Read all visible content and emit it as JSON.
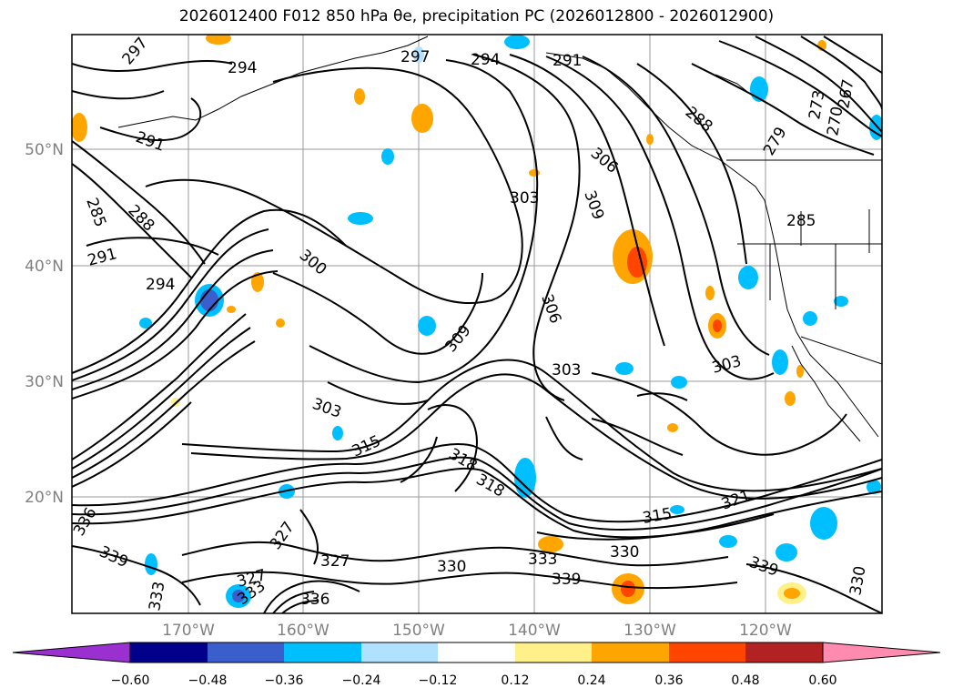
{
  "title": "2026012400 F012 850 hPa θe, precipitation PC (2026012800 - 2026012900)",
  "map": {
    "lat_labels": [
      "50°N",
      "40°N",
      "30°N",
      "20°N"
    ],
    "lon_labels": [
      "170°W",
      "160°W",
      "150°W",
      "140°W",
      "130°W",
      "120°W"
    ],
    "contour_labels": [
      "297",
      "294",
      "297",
      "294",
      "291",
      "291",
      "285",
      "288",
      "291",
      "294",
      "300",
      "303",
      "306",
      "309",
      "306",
      "309",
      "303",
      "303",
      "303",
      "318",
      "315",
      "318",
      "330",
      "327",
      "327",
      "330",
      "333",
      "339",
      "339",
      "336",
      "333",
      "336",
      "339",
      "327",
      "333",
      "315",
      "285",
      "279",
      "273",
      "270",
      "267",
      "288",
      "321",
      "330"
    ]
  },
  "colorbar": {
    "ticks": [
      "−0.60",
      "−0.48",
      "−0.36",
      "−0.24",
      "−0.12",
      "0.12",
      "0.24",
      "0.36",
      "0.48",
      "0.60"
    ],
    "colors": [
      "#9b30d0",
      "#00008b",
      "#3a5fcd",
      "#00bfff",
      "#b0e2ff",
      "#ffffff",
      "#fff08a",
      "#ffa500",
      "#ff4500",
      "#b22222",
      "#ff8cb0"
    ]
  }
}
